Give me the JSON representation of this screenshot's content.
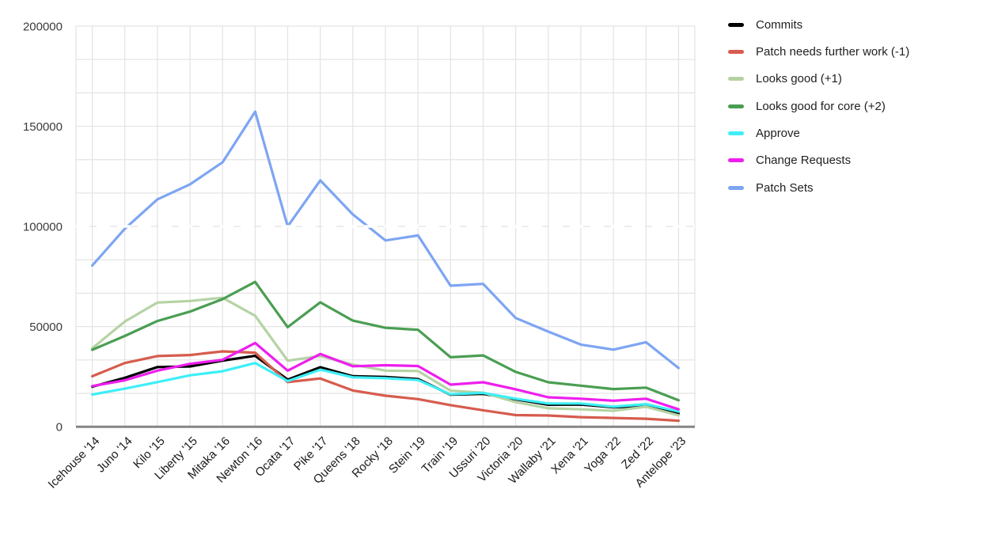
{
  "chart_data": {
    "type": "line",
    "title": "",
    "xlabel": "",
    "ylabel": "",
    "ylim": [
      0,
      200000
    ],
    "y_ticks": [
      0,
      50000,
      100000,
      150000,
      200000
    ],
    "minor_gridline_step": 16667,
    "grid": true,
    "legend_position": "right",
    "highlight_line": {
      "value": 100000,
      "style": "white-dashed"
    },
    "categories": [
      "Icehouse '14",
      "Juno '14",
      "Kilo '15",
      "Liberty '15",
      "Mitaka '16",
      "Newton '16",
      "Ocata '17",
      "Pike '17",
      "Queens '18",
      "Rocky '18",
      "Stein '19",
      "Train '19",
      "Ussuri '20",
      "Victoria '20",
      "Wallaby '21",
      "Xena '21",
      "Yoga '22",
      "Zed '22",
      "Antelope '23"
    ],
    "series": [
      {
        "name": "Commits",
        "color": "#000000",
        "values": [
          20000,
          24400,
          29800,
          30100,
          33000,
          35400,
          23500,
          29700,
          25200,
          24800,
          23800,
          16000,
          16400,
          13700,
          11000,
          11100,
          9700,
          10300,
          6600
        ]
      },
      {
        "name": "Patch needs further work (-1)",
        "color": "#D65C4E",
        "values": [
          25200,
          31800,
          35300,
          35800,
          37600,
          37000,
          22300,
          24100,
          18100,
          15500,
          13800,
          10800,
          8200,
          5800,
          5600,
          4800,
          4400,
          4000,
          3000
        ]
      },
      {
        "name": "Looks good (+1)",
        "color": "#B5D3A4",
        "values": [
          39200,
          52500,
          62000,
          62800,
          64400,
          55400,
          33000,
          35300,
          31000,
          28000,
          27800,
          18000,
          17000,
          12300,
          9200,
          8700,
          8000,
          10000,
          5700
        ]
      },
      {
        "name": "Looks good for core (+2)",
        "color": "#4A9E52",
        "values": [
          38400,
          45300,
          52800,
          57500,
          63700,
          72300,
          49700,
          62100,
          53000,
          49400,
          48400,
          34700,
          35600,
          27400,
          22200,
          20500,
          18800,
          19500,
          13200
        ]
      },
      {
        "name": "Approve",
        "color": "#3EEFF6",
        "values": [
          16100,
          19000,
          22300,
          25700,
          27700,
          31800,
          22800,
          28500,
          24700,
          24200,
          23300,
          16200,
          16900,
          14000,
          11600,
          11600,
          10000,
          11300,
          7600
        ]
      },
      {
        "name": "Change Requests",
        "color": "#EE1EEE",
        "values": [
          20300,
          23200,
          28000,
          31400,
          33400,
          41800,
          28000,
          36300,
          30200,
          30700,
          30300,
          21000,
          22200,
          18700,
          14700,
          14000,
          13000,
          14000,
          8700
        ]
      },
      {
        "name": "Patch Sets",
        "color": "#7DA5F2",
        "values": [
          80500,
          98800,
          113500,
          121000,
          132000,
          157300,
          100000,
          123000,
          106000,
          93000,
          95500,
          70400,
          71300,
          54300,
          47500,
          41000,
          38500,
          42200,
          29300
        ]
      }
    ]
  }
}
